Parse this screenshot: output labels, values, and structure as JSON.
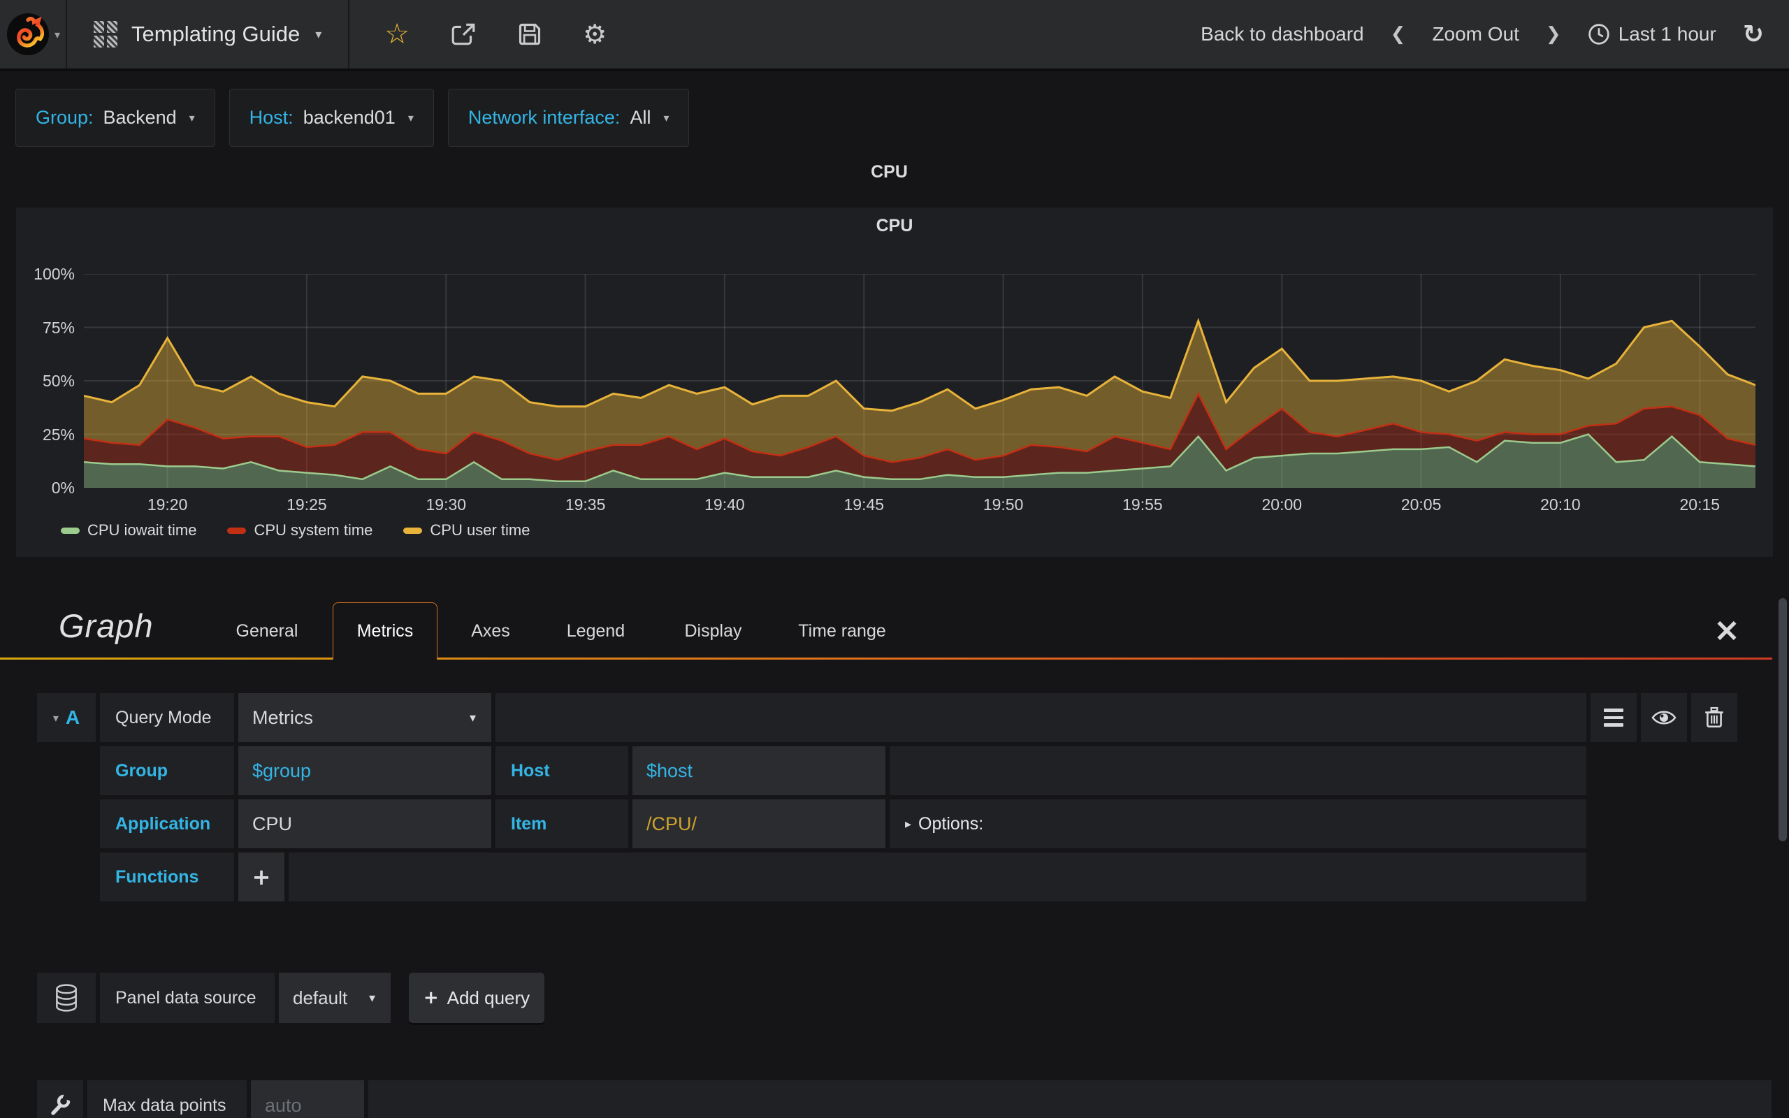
{
  "glyphs": {
    "caret": "▾",
    "caret_right": "▸",
    "chevron_left": "❮",
    "chevron_right": "❯",
    "star": "☆",
    "gear": "⚙",
    "refresh": "↻",
    "close": "×",
    "plus": "+"
  },
  "navbar": {
    "title": "Templating Guide",
    "back": "Back to dashboard",
    "zoom_out": "Zoom Out",
    "time_range": "Last 1 hour"
  },
  "variables": [
    {
      "label": "Group:",
      "value": "Backend"
    },
    {
      "label": "Host:",
      "value": "backend01"
    },
    {
      "label": "Network interface:",
      "value": "All"
    }
  ],
  "row_title": "CPU",
  "panel": {
    "title": "CPU"
  },
  "chart_data": {
    "type": "area",
    "stacked": true,
    "title": "CPU",
    "unit": "percent",
    "ylim": [
      0,
      100
    ],
    "grid": true,
    "legend_position": "bottom",
    "y_ticks": [
      {
        "value": 0,
        "label": "0%"
      },
      {
        "value": 25,
        "label": "25%"
      },
      {
        "value": 50,
        "label": "50%"
      },
      {
        "value": 75,
        "label": "75%"
      },
      {
        "value": 100,
        "label": "100%"
      }
    ],
    "x_start": "19:17",
    "x_end": "20:17",
    "step_minutes": 1,
    "x_ticks": [
      {
        "minute": 3,
        "label": "19:20"
      },
      {
        "minute": 8,
        "label": "19:25"
      },
      {
        "minute": 13,
        "label": "19:30"
      },
      {
        "minute": 18,
        "label": "19:35"
      },
      {
        "minute": 23,
        "label": "19:40"
      },
      {
        "minute": 28,
        "label": "19:45"
      },
      {
        "minute": 33,
        "label": "19:50"
      },
      {
        "minute": 38,
        "label": "19:55"
      },
      {
        "minute": 43,
        "label": "20:00"
      },
      {
        "minute": 48,
        "label": "20:05"
      },
      {
        "minute": 53,
        "label": "20:10"
      },
      {
        "minute": 58,
        "label": "20:15"
      }
    ],
    "series": [
      {
        "name": "CPU iowait time",
        "color": "#9CCB8E",
        "values": [
          12,
          11,
          11,
          10,
          10,
          9,
          12,
          8,
          7,
          6,
          4,
          10,
          4,
          4,
          12,
          4,
          4,
          3,
          3,
          8,
          4,
          4,
          4,
          7,
          5,
          5,
          5,
          8,
          5,
          4,
          4,
          6,
          5,
          5,
          6,
          7,
          7,
          8,
          9,
          10,
          24,
          8,
          14,
          15,
          16,
          16,
          17,
          18,
          18,
          19,
          12,
          22,
          21,
          21,
          25,
          12,
          13,
          24,
          12,
          11,
          10
        ]
      },
      {
        "name": "CPU system time",
        "color": "#C23014",
        "values": [
          11,
          10,
          9,
          22,
          18,
          14,
          12,
          16,
          12,
          14,
          22,
          16,
          14,
          12,
          14,
          18,
          12,
          10,
          14,
          12,
          16,
          20,
          14,
          16,
          12,
          10,
          14,
          16,
          10,
          8,
          10,
          12,
          8,
          10,
          14,
          12,
          10,
          16,
          12,
          8,
          20,
          10,
          14,
          22,
          10,
          8,
          10,
          12,
          8,
          6,
          10,
          4,
          4,
          4,
          4,
          18,
          24,
          14,
          22,
          12,
          10
        ]
      },
      {
        "name": "CPU user time",
        "color": "#E8B33A",
        "values": [
          20,
          19,
          28,
          38,
          20,
          22,
          28,
          20,
          21,
          18,
          26,
          24,
          26,
          28,
          26,
          28,
          24,
          25,
          21,
          24,
          22,
          24,
          26,
          24,
          22,
          28,
          24,
          26,
          22,
          24,
          26,
          28,
          24,
          26,
          26,
          28,
          26,
          28,
          24,
          24,
          34,
          22,
          28,
          28,
          24,
          26,
          24,
          22,
          24,
          20,
          28,
          34,
          32,
          30,
          22,
          28,
          38,
          40,
          32,
          30,
          28
        ]
      }
    ]
  },
  "editor": {
    "heading": "Graph",
    "tabs": [
      {
        "label": "General"
      },
      {
        "label": "Metrics"
      },
      {
        "label": "Axes"
      },
      {
        "label": "Legend"
      },
      {
        "label": "Display"
      },
      {
        "label": "Time range"
      }
    ],
    "active_tab": "Metrics",
    "query": {
      "ref": "A",
      "mode_label": "Query Mode",
      "mode_value": "Metrics",
      "group_label": "Group",
      "group_value": "$group",
      "host_label": "Host",
      "host_value": "$host",
      "application_label": "Application",
      "application_value": "CPU",
      "item_label": "Item",
      "item_value": "/CPU/",
      "options_label": "Options:",
      "functions_label": "Functions"
    },
    "datasource": {
      "label": "Panel data source",
      "value": "default",
      "add_query": "Add query"
    },
    "max_data_points": {
      "label": "Max data points",
      "placeholder": "auto"
    }
  },
  "colors": {
    "accent_blue": "#33b5e5",
    "star_yellow": "#eab839",
    "item_gold": "#cfa42b",
    "tab_border_orange": "#d4701f"
  }
}
